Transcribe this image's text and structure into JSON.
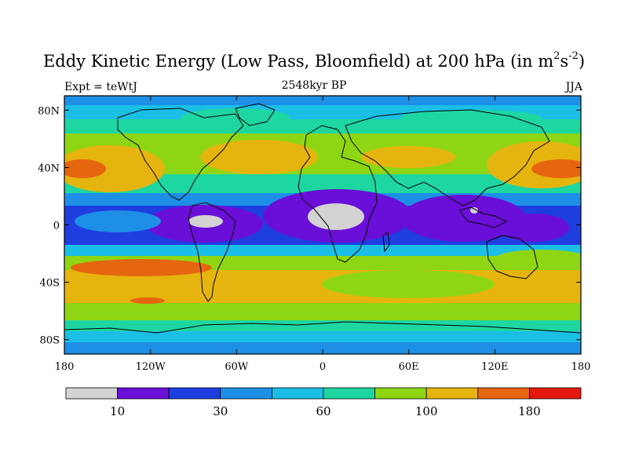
{
  "title": {
    "main": "Eddy Kinetic Energy (Low Pass, Bloomfield) at 200 hPa (in m",
    "sup1": "2",
    "mid": "s",
    "sup2": "-2",
    "end": ")"
  },
  "subtitle": {
    "left": "Expt = teWtJ",
    "center": "2548kyr BP",
    "right": "JJA"
  },
  "axes": {
    "y_ticks": [
      {
        "label": "80N",
        "lat": 80
      },
      {
        "label": "40N",
        "lat": 40
      },
      {
        "label": "0",
        "lat": 0
      },
      {
        "label": "40S",
        "lat": -40
      },
      {
        "label": "80S",
        "lat": -80
      }
    ],
    "x_ticks": [
      {
        "label": "180",
        "lon": -180
      },
      {
        "label": "120W",
        "lon": -120
      },
      {
        "label": "60W",
        "lon": -60
      },
      {
        "label": "0",
        "lon": 0
      },
      {
        "label": "60E",
        "lon": 60
      },
      {
        "label": "120E",
        "lon": 120
      },
      {
        "label": "180",
        "lon": 180
      }
    ],
    "lon_range": [
      -180,
      180
    ],
    "lat_range": [
      -90,
      90
    ]
  },
  "colorbar": {
    "colors": [
      "#d3d3d3",
      "#6a0fd8",
      "#1f3ee0",
      "#1e8fe6",
      "#1bbfe6",
      "#1ed6a0",
      "#8ed614",
      "#e6b40f",
      "#e6650f",
      "#e6190f"
    ],
    "labels": [
      {
        "text": "10",
        "index": 1
      },
      {
        "text": "30",
        "index": 3
      },
      {
        "text": "60",
        "index": 5
      },
      {
        "text": "100",
        "index": 7
      },
      {
        "text": "180",
        "index": 9
      }
    ]
  }
}
